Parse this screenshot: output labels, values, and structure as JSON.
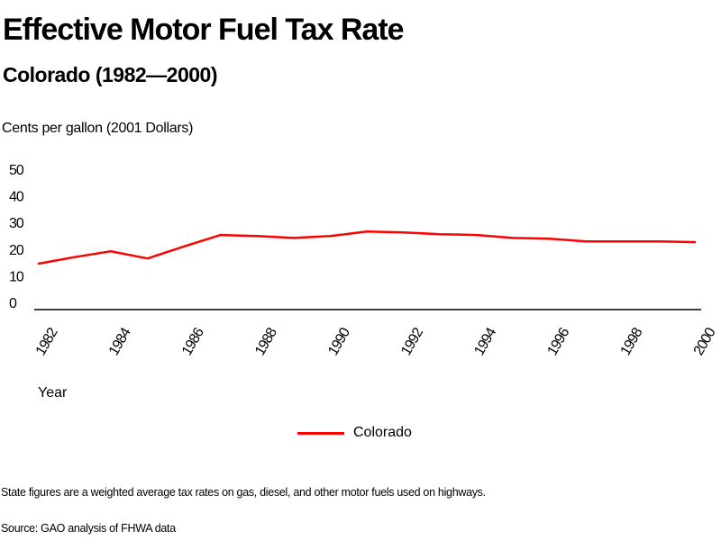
{
  "header": {
    "title": "Effective Motor Fuel Tax Rate",
    "subtitle": "Colorado (1982—2000)"
  },
  "footer": {
    "note": "State figures are a weighted average tax rates on gas, diesel, and other motor fuels used on highways.",
    "source": "Source: GAO analysis of FHWA data"
  },
  "chart_data": {
    "type": "line",
    "title": "Effective Motor Fuel Tax Rate",
    "subtitle": "Colorado (1982—2000)",
    "xlabel": "Year",
    "ylabel": "Cents per gallon (2001 Dollars)",
    "ylim": [
      0,
      50
    ],
    "xlim": [
      1982,
      2000
    ],
    "yticks": [
      "0",
      "10",
      "20",
      "30",
      "40",
      "50"
    ],
    "ytick_values": [
      0,
      10,
      20,
      30,
      40,
      50
    ],
    "xticks": [
      "1982",
      "1984",
      "1986",
      "1988",
      "1990",
      "1992",
      "1994",
      "1996",
      "1998",
      "2000"
    ],
    "xtick_values": [
      1982,
      1984,
      1986,
      1988,
      1990,
      1992,
      1994,
      1996,
      1998,
      2000
    ],
    "grid": false,
    "legend": "bottom-center",
    "x": [
      1982,
      1983,
      1984,
      1985,
      1986,
      1987,
      1988,
      1989,
      1990,
      1991,
      1992,
      1993,
      1994,
      1995,
      1996,
      1997,
      1998,
      1999,
      2000
    ],
    "series": [
      {
        "name": "Colorado",
        "color": "#ff0000",
        "values": [
          14.5,
          17.0,
          19.2,
          16.5,
          21.0,
          25.3,
          24.9,
          24.2,
          24.9,
          26.6,
          26.3,
          25.6,
          25.3,
          24.2,
          23.9,
          22.9,
          22.9,
          22.9,
          22.6
        ]
      }
    ]
  }
}
